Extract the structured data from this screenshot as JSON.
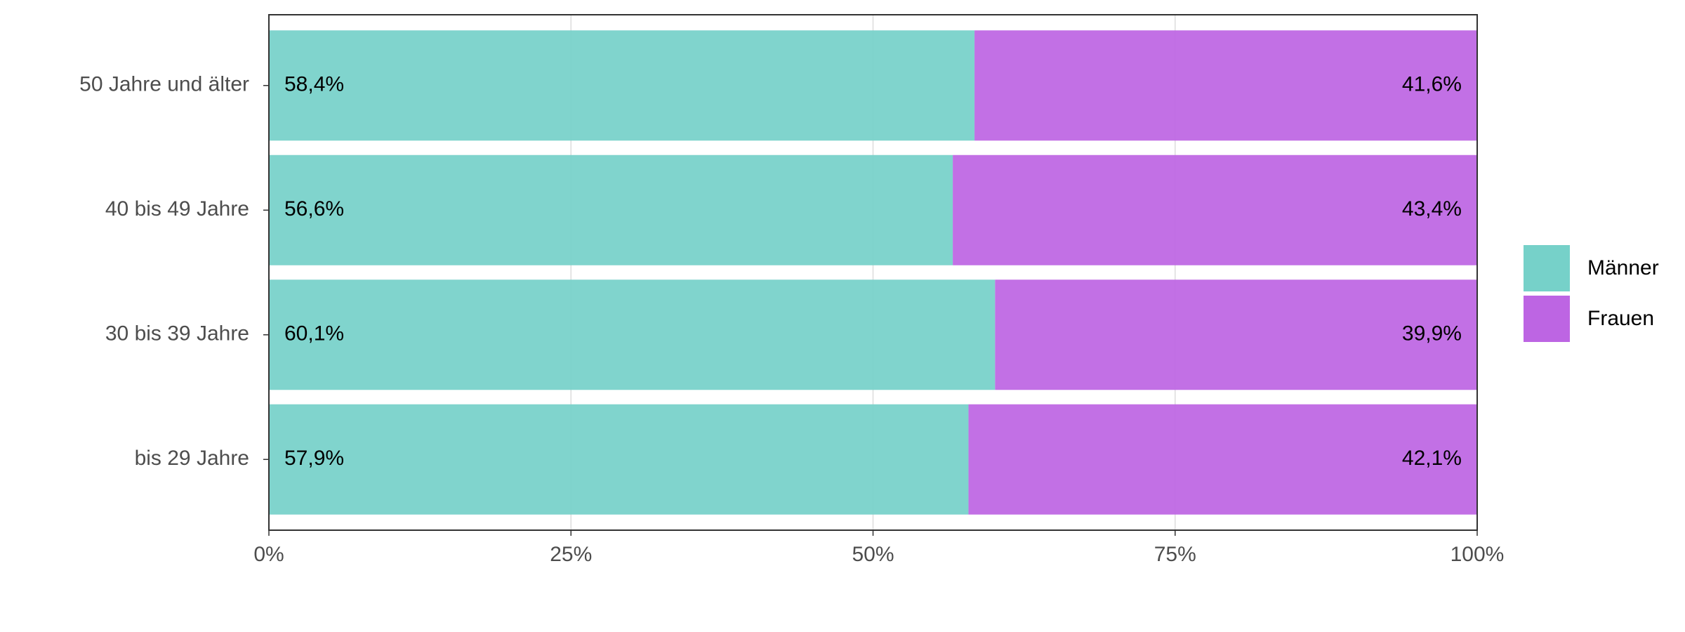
{
  "chart_data": {
    "type": "stacked-bar-horizontal",
    "categories": [
      "50 Jahre und älter",
      "40 bis 49 Jahre",
      "30 bis 39 Jahre",
      "bis 29 Jahre"
    ],
    "series": [
      {
        "name": "Männer",
        "color": "#76d1c9",
        "values": [
          58.4,
          56.6,
          60.1,
          57.9
        ],
        "value_labels": [
          "58,4%",
          "56,6%",
          "60,1%",
          "57,9%"
        ]
      },
      {
        "name": "Frauen",
        "color": "#bd65e3",
        "values": [
          41.6,
          43.4,
          39.9,
          42.1
        ],
        "value_labels": [
          "41,6%",
          "43,4%",
          "39,9%",
          "42,1%"
        ]
      }
    ],
    "xlim": [
      0,
      100
    ],
    "xticks": [
      {
        "value": 0,
        "label": "0%"
      },
      {
        "value": 25,
        "label": "25%"
      },
      {
        "value": 50,
        "label": "50%"
      },
      {
        "value": 75,
        "label": "75%"
      },
      {
        "value": 100,
        "label": "100%"
      }
    ],
    "grid": true,
    "legend": "right"
  }
}
